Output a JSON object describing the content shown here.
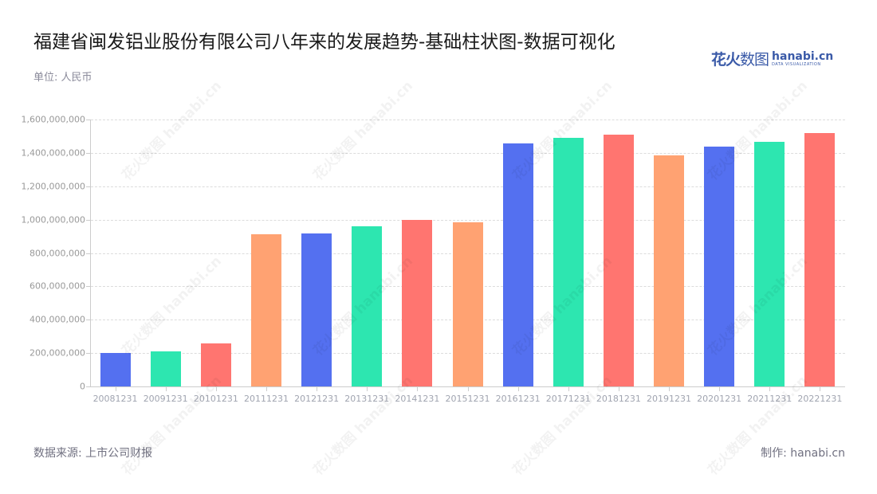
{
  "header": {
    "title": "福建省闽发铝业股份有限公司八年来的发展趋势-基础柱状图-数据可视化",
    "unit": "单位: 人民币"
  },
  "logo": {
    "cn_bold": "花火",
    "cn_thin": "数图",
    "en": "hanabi.cn",
    "en_sub": "DATA VISUALIZATION"
  },
  "footer": {
    "source": "数据来源: 上市公司财报",
    "maker": "制作:  hanabi.cn"
  },
  "watermark": "花火数图 hanabi.cn",
  "colors": [
    "#5470f0",
    "#2de6b0",
    "#ff7570",
    "#ffa272"
  ],
  "chart_data": {
    "type": "bar",
    "title": "福建省闽发铝业股份有限公司八年来的发展趋势-基础柱状图-数据可视化",
    "xlabel": "",
    "ylabel": "单位: 人民币",
    "ylim": [
      0,
      1600000000
    ],
    "grid": true,
    "legend": null,
    "yticks": [
      "0",
      "200,000,000",
      "400,000,000",
      "600,000,000",
      "800,000,000",
      "1,000,000,000",
      "1,200,000,000",
      "1,400,000,000",
      "1,600,000,000"
    ],
    "categories": [
      "20081231",
      "20091231",
      "20101231",
      "20111231",
      "20121231",
      "20131231",
      "20141231",
      "20151231",
      "20161231",
      "20171231",
      "20181231",
      "20191231",
      "20201231",
      "20211231",
      "20221231"
    ],
    "values": [
      200000000,
      208000000,
      258000000,
      911000000,
      915000000,
      960000000,
      998000000,
      982000000,
      1455000000,
      1490000000,
      1508000000,
      1385000000,
      1437000000,
      1468000000,
      1520000000
    ],
    "bar_colors": [
      "#5470f0",
      "#2de6b0",
      "#ff7570",
      "#ffa272",
      "#5470f0",
      "#2de6b0",
      "#ff7570",
      "#ffa272",
      "#5470f0",
      "#2de6b0",
      "#ff7570",
      "#ffa272",
      "#5470f0",
      "#2de6b0",
      "#ff7570"
    ]
  }
}
